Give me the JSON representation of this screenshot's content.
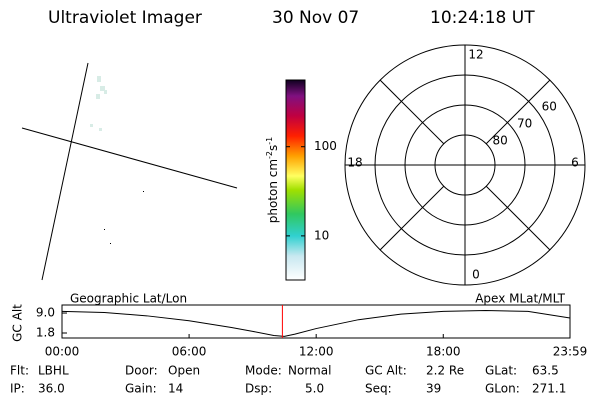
{
  "header": {
    "title": "Ultraviolet Imager",
    "date": "30 Nov 07",
    "time": "10:24:18 UT"
  },
  "colorbar": {
    "label_parts": [
      "photon cm",
      "-2",
      "s",
      "-1"
    ],
    "log": true,
    "clim": [
      3.2,
      560
    ],
    "ticks": [
      10,
      100
    ]
  },
  "polar": {
    "rlim": [
      90,
      50
    ],
    "rticks": [
      60,
      70,
      80
    ],
    "mlt_labels": [
      12,
      18,
      6,
      0
    ]
  },
  "altitude": {
    "left_label": "Geographic Lat/Lon",
    "right_label": "Apex MLat/MLT",
    "ylabel": "GC Alt",
    "ylim": [
      0,
      11.9
    ],
    "yticks": [
      {
        "value": 9,
        "label": "9.0"
      },
      1.8
    ],
    "xlim": [
      0,
      23.983
    ],
    "xticks": [
      {
        "value": 0,
        "label": "00:00"
      },
      {
        "value": 6,
        "label": "06:00"
      },
      {
        "value": 12,
        "label": "12:00"
      },
      {
        "value": 18,
        "label": "18:00"
      },
      {
        "value": 23.983,
        "label": "23:59"
      }
    ],
    "x": [
      0,
      2,
      4,
      6,
      8,
      9,
      10,
      10.5,
      11,
      12,
      14,
      16,
      18,
      20,
      22,
      23.983
    ],
    "values": [
      9.6,
      9.2,
      8.0,
      6.2,
      3.8,
      2.4,
      0.9,
      0.6,
      1.4,
      3.4,
      6.6,
      8.6,
      9.6,
      9.9,
      9.6,
      7.2
    ],
    "color": "#000000",
    "now": 10.405,
    "now_color": "#ff0000"
  },
  "status": {
    "rows": [
      [
        [
          "Flt:",
          "LBHL"
        ],
        [
          "Door:",
          "Open"
        ],
        [
          "Mode:",
          "Normal"
        ],
        [
          "GC Alt:",
          "2.2 Re"
        ],
        [
          "GLat:",
          "63.5"
        ]
      ],
      [
        [
          "IP:",
          "36.0"
        ],
        [
          "Gain:",
          "14"
        ],
        [
          "Dsp:",
          "5.0"
        ],
        [
          "Seq:",
          "39"
        ],
        [
          "GLon:",
          "271.1"
        ]
      ]
    ]
  }
}
